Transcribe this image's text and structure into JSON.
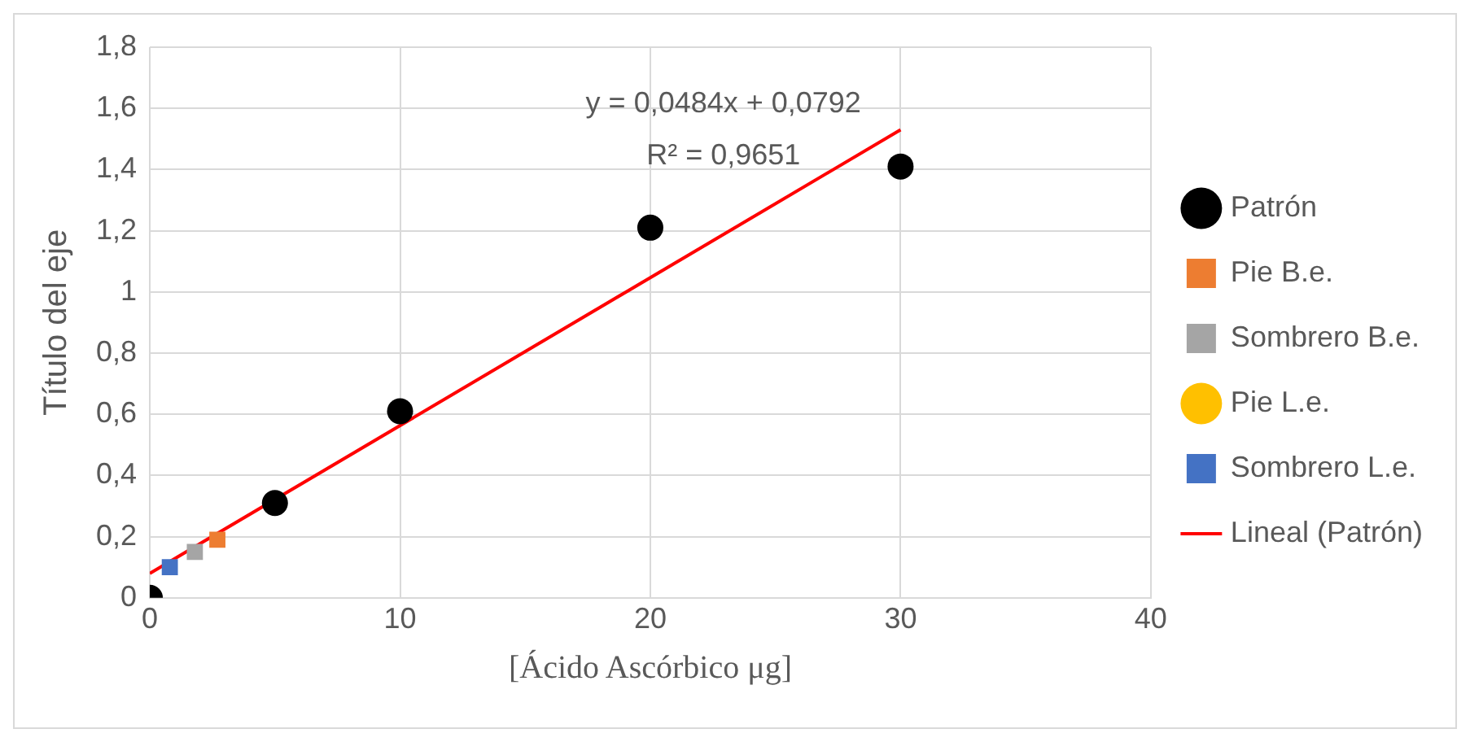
{
  "chart_data": {
    "type": "scatter",
    "xlabel": "[Ácido Ascórbico μg]",
    "ylabel": "Título del eje",
    "xlim": [
      0,
      40
    ],
    "xticks": [
      0,
      10,
      20,
      30,
      40
    ],
    "ylim": [
      0,
      1.8
    ],
    "yticks": [
      {
        "value": 0,
        "label": "0"
      },
      {
        "value": 0.2,
        "label": "0,2"
      },
      {
        "value": 0.4,
        "label": "0,4"
      },
      {
        "value": 0.6,
        "label": "0,6"
      },
      {
        "value": 0.8,
        "label": "0,8"
      },
      {
        "value": 1,
        "label": "1"
      },
      {
        "value": 1.2,
        "label": "1,2"
      },
      {
        "value": 1.4,
        "label": "1,4"
      },
      {
        "value": 1.6,
        "label": "1,6"
      },
      {
        "value": 1.8,
        "label": "1,8"
      }
    ],
    "grid": true,
    "legend": "right",
    "annotations": [
      "y = 0,0484x + 0,0792",
      "R² = 0,9651"
    ],
    "series": [
      {
        "name": "Patrón",
        "color": "#000000",
        "marker": "circle",
        "x": [
          0,
          5,
          10,
          20,
          30
        ],
        "values": [
          0,
          0.31,
          0.61,
          1.21,
          1.41
        ]
      },
      {
        "name": "Pie B.e.",
        "color": "#ed7d31",
        "marker": "square",
        "x": [
          2.7
        ],
        "values": [
          0.19
        ]
      },
      {
        "name": "Sombrero B.e.",
        "color": "#a5a5a5",
        "marker": "square",
        "x": [
          1.8
        ],
        "values": [
          0.15
        ]
      },
      {
        "name": "Pie L.e.",
        "color": "#ffc000",
        "marker": "circle"
      },
      {
        "name": "Sombrero L.e.",
        "color": "#4472c4",
        "marker": "square",
        "x": [
          0.8
        ],
        "values": [
          0.1
        ]
      },
      {
        "name": "Lineal (Patrón)",
        "type": "line",
        "color": "#ff0000",
        "marker": "none",
        "x": [
          0,
          30
        ],
        "values": [
          0.08,
          1.53
        ]
      }
    ]
  }
}
